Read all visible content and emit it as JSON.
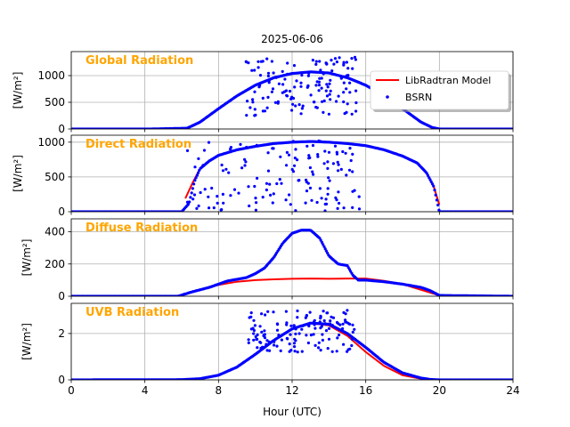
{
  "figure": {
    "title": "2025-06-06",
    "xlabel": "Hour (UTC)",
    "xlim": [
      0,
      24
    ],
    "xticks": [
      "0",
      "4",
      "8",
      "12",
      "16",
      "20",
      "24"
    ],
    "ylabel": "[W/m²]",
    "grid": true,
    "legend": {
      "placement": "top-right of first panel",
      "model_label": "LibRadtran Model",
      "obs_label": "BSRN"
    },
    "colors": {
      "model": "#ff0000",
      "obs": "#0000ff",
      "panel_label": "#ffa500",
      "grid": "#b0b0b0"
    }
  },
  "chart_data": [
    {
      "type": "line",
      "title": "Global Radiation",
      "ylabel": "[W/m²]",
      "ylim": [
        0,
        1450
      ],
      "yticks": [
        "0",
        "500",
        "1000"
      ],
      "series": [
        {
          "name": "LibRadtran Model",
          "x": [
            6.2,
            7,
            8,
            9,
            10,
            11,
            12,
            13,
            14,
            15,
            16,
            17,
            18,
            19,
            19.8
          ],
          "y": [
            5,
            130,
            380,
            620,
            820,
            960,
            1040,
            1070,
            1050,
            960,
            820,
            620,
            380,
            130,
            5
          ]
        },
        {
          "name": "BSRN",
          "curve_x": [
            0,
            4.3,
            6.3,
            7,
            8,
            9,
            10,
            11,
            12,
            13,
            14,
            15,
            16,
            17,
            18,
            19,
            19.6,
            20,
            24
          ],
          "curve_y": [
            0,
            0,
            15,
            130,
            380,
            620,
            820,
            960,
            1040,
            1070,
            1050,
            960,
            820,
            620,
            380,
            130,
            30,
            0,
            0
          ],
          "scatter_range_x": [
            9.5,
            15.5
          ],
          "scatter_range_y": [
            250,
            1350
          ]
        }
      ]
    },
    {
      "type": "line",
      "title": "Direct Radiation",
      "ylabel": "[W/m²]",
      "ylim": [
        0,
        1100
      ],
      "yticks": [
        "0",
        "500",
        "1000"
      ],
      "series": [
        {
          "name": "LibRadtran Model",
          "x": [
            6.2,
            6.6,
            7,
            7.5,
            8,
            9,
            10,
            11,
            12,
            13,
            14,
            15,
            16,
            17,
            18,
            18.8,
            19.3,
            19.7,
            20
          ],
          "y": [
            190,
            420,
            620,
            730,
            810,
            890,
            940,
            980,
            1000,
            1010,
            1000,
            980,
            950,
            890,
            800,
            700,
            560,
            360,
            100
          ]
        },
        {
          "name": "BSRN",
          "curve_x": [
            0,
            6.0,
            6.4,
            6.7,
            7,
            7.5,
            8,
            9,
            10,
            11,
            12,
            13,
            14,
            15,
            16,
            17,
            18,
            18.8,
            19.3,
            19.7,
            20,
            24
          ],
          "curve_y": [
            0,
            0,
            120,
            440,
            620,
            730,
            810,
            890,
            940,
            980,
            1000,
            1010,
            1000,
            980,
            950,
            890,
            800,
            700,
            560,
            360,
            0,
            0
          ],
          "scatter_range_x": [
            6.3,
            15.7
          ],
          "scatter_range_y": [
            0,
            1050
          ]
        }
      ]
    },
    {
      "type": "line",
      "title": "Diffuse Radiation",
      "ylabel": "[W/m²]",
      "ylim": [
        0,
        480
      ],
      "yticks": [
        "0",
        "200",
        "400"
      ],
      "series": [
        {
          "name": "LibRadtran Model",
          "x": [
            6.0,
            7,
            8,
            9,
            10,
            11,
            12,
            13,
            14,
            15,
            16,
            17,
            18,
            19,
            20
          ],
          "y": [
            10,
            40,
            70,
            90,
            100,
            105,
            108,
            110,
            108,
            110,
            110,
            95,
            75,
            40,
            5
          ]
        },
        {
          "name": "BSRN",
          "x": [
            0,
            5.8,
            6.5,
            7.5,
            8,
            8.5,
            9,
            9.5,
            10,
            10.5,
            11,
            11.5,
            12,
            12.5,
            13,
            13.5,
            14,
            14.5,
            15,
            15.3,
            15.6,
            16,
            17,
            18,
            19,
            19.5,
            20,
            24
          ],
          "y": [
            0,
            0,
            25,
            55,
            75,
            95,
            105,
            115,
            140,
            175,
            240,
            330,
            390,
            410,
            410,
            360,
            250,
            200,
            190,
            130,
            100,
            100,
            90,
            75,
            55,
            35,
            5,
            0
          ]
        }
      ]
    },
    {
      "type": "line",
      "title": "UVB Radiation",
      "ylabel": "[W/m²]",
      "ylim": [
        0,
        3.3
      ],
      "yticks": [
        "0",
        "2"
      ],
      "series": [
        {
          "name": "LibRadtran Model",
          "x": [
            6,
            7,
            8,
            9,
            10,
            11,
            12,
            13,
            14,
            15,
            16,
            17,
            18,
            19,
            20
          ],
          "y": [
            0.01,
            0.05,
            0.2,
            0.55,
            1.1,
            1.7,
            2.2,
            2.45,
            2.35,
            1.9,
            1.2,
            0.6,
            0.2,
            0.05,
            0.01
          ]
        },
        {
          "name": "BSRN",
          "curve_x": [
            0,
            6,
            7,
            8,
            9,
            10,
            11,
            12,
            13,
            14,
            15,
            16,
            17,
            18,
            19,
            19.5,
            20,
            24
          ],
          "curve_y": [
            0,
            0.01,
            0.05,
            0.2,
            0.55,
            1.1,
            1.7,
            2.2,
            2.45,
            2.4,
            2.0,
            1.4,
            0.75,
            0.3,
            0.08,
            0.02,
            0,
            0
          ],
          "scatter_range_x": [
            9.6,
            15.4
          ],
          "scatter_range_y": [
            1.2,
            3.0
          ]
        }
      ]
    }
  ]
}
